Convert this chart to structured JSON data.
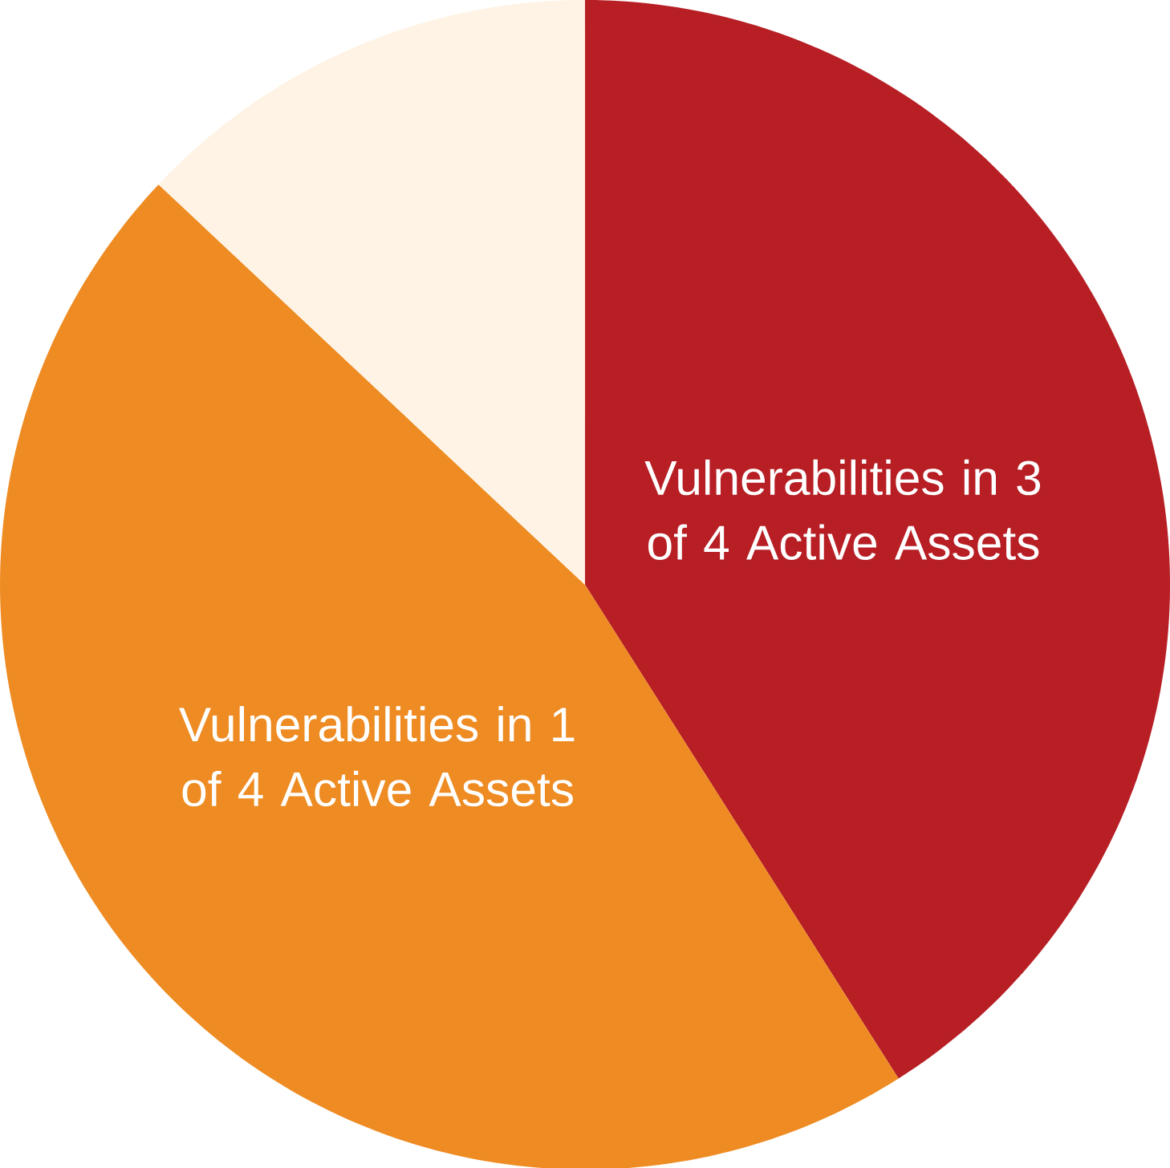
{
  "chart_data": {
    "type": "pie",
    "categories": [
      "Vulnerabilities in 3 of 4 Active Assets",
      "Vulnerabilities in 1 of 4 Active Assets",
      null
    ],
    "values": [
      41,
      46,
      13
    ],
    "colors": [
      "#b71f25",
      "#ee8b22",
      "#fef3e4"
    ]
  }
}
